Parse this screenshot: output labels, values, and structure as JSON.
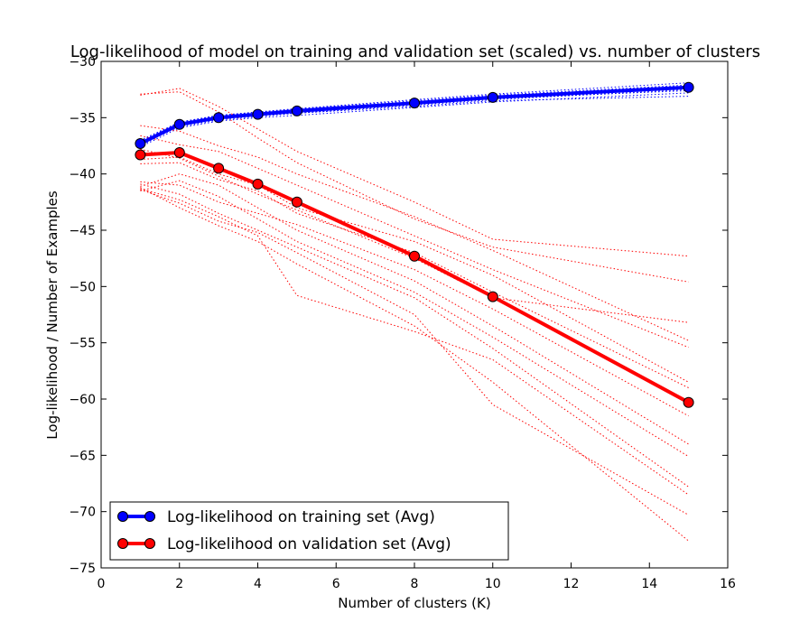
{
  "chart_data": {
    "type": "line",
    "title": "Log-likelihood of model on training and validation set (scaled) vs. number of clusters",
    "xlabel": "Number of clusters (K)",
    "ylabel": "Log-likelihood / Number of Examples",
    "xlim": [
      0,
      16
    ],
    "ylim": [
      -75,
      -30
    ],
    "xticks": [
      0,
      2,
      4,
      6,
      8,
      10,
      12,
      14,
      16
    ],
    "yticks": [
      -30,
      -35,
      -40,
      -45,
      -50,
      -55,
      -60,
      -65,
      -70,
      -75
    ],
    "x": [
      1,
      2,
      3,
      4,
      5,
      8,
      10,
      15
    ],
    "grid": false,
    "legend_position": "lower-left",
    "series": [
      {
        "name": "Log-likelihood on training set (Avg)",
        "color": "#0000ff",
        "values": [
          -37.3,
          -35.6,
          -35.0,
          -34.7,
          -34.4,
          -33.7,
          -33.2,
          -32.3
        ]
      },
      {
        "name": "Log-likelihood on validation set (Avg)",
        "color": "#ff0000",
        "values": [
          -38.3,
          -38.1,
          -39.5,
          -40.9,
          -42.5,
          -47.3,
          -50.9,
          -60.3
        ]
      }
    ],
    "runs": {
      "training": {
        "color": "#0000ff",
        "style": "dotted",
        "values": [
          [
            -37.4,
            -35.8,
            -35.2,
            -34.9,
            -34.6,
            -33.9,
            -33.4,
            -32.5
          ],
          [
            -37.0,
            -35.4,
            -34.8,
            -34.5,
            -34.2,
            -33.5,
            -33.0,
            -32.1
          ],
          [
            -37.6,
            -35.9,
            -35.3,
            -35.0,
            -34.8,
            -34.1,
            -33.6,
            -32.8
          ],
          [
            -37.2,
            -35.5,
            -34.9,
            -34.6,
            -34.3,
            -33.6,
            -33.1,
            -32.2
          ],
          [
            -37.5,
            -35.7,
            -35.1,
            -34.8,
            -34.6,
            -34.0,
            -33.5,
            -33.1
          ],
          [
            -37.1,
            -35.4,
            -34.8,
            -34.5,
            -34.2,
            -33.4,
            -32.9,
            -31.9
          ],
          [
            -37.3,
            -35.6,
            -35.0,
            -34.7,
            -34.5,
            -33.8,
            -33.3,
            -32.6
          ]
        ]
      },
      "validation": {
        "color": "#ff0000",
        "style": "dotted",
        "values": [
          [
            -33.0,
            -32.4,
            -34.0,
            -36.0,
            -38.0,
            -42.5,
            -45.8,
            -47.3
          ],
          [
            -32.9,
            -32.7,
            -34.5,
            -36.8,
            -39.0,
            -44.0,
            -46.5,
            -49.6
          ],
          [
            -35.7,
            -36.2,
            -37.5,
            -38.5,
            -40.0,
            -43.8,
            -46.8,
            -54.8
          ],
          [
            -36.6,
            -37.4,
            -38.0,
            -39.5,
            -41.0,
            -45.5,
            -48.5,
            -55.4
          ],
          [
            -38.7,
            -38.5,
            -40.0,
            -41.0,
            -43.0,
            -46.0,
            -49.0,
            -58.5
          ],
          [
            -39.1,
            -39.0,
            -40.5,
            -41.5,
            -43.5,
            -47.0,
            -50.5,
            -59.0
          ],
          [
            -40.7,
            -41.0,
            -42.5,
            -43.5,
            -44.5,
            -48.5,
            -52.0,
            -61.5
          ],
          [
            -41.1,
            -40.0,
            -41.0,
            -43.0,
            -45.0,
            -49.5,
            -53.5,
            -64.0
          ],
          [
            -41.5,
            -40.6,
            -42.0,
            -44.0,
            -46.0,
            -50.5,
            -54.5,
            -65.1
          ],
          [
            -40.9,
            -41.8,
            -43.5,
            -45.0,
            -46.5,
            -51.0,
            -55.5,
            -67.8
          ],
          [
            -41.3,
            -42.3,
            -43.8,
            -45.5,
            -50.8,
            -54.0,
            -56.5,
            -68.5
          ],
          [
            -41.4,
            -42.6,
            -44.2,
            -45.2,
            -47.0,
            -52.5,
            -60.5,
            -70.3
          ],
          [
            -41.2,
            -43.0,
            -44.6,
            -46.0,
            -48.0,
            -53.5,
            -58.5,
            -72.6
          ],
          [
            -37.8,
            -38.6,
            -40.2,
            -41.8,
            -43.2,
            -47.5,
            -51.0,
            -53.2
          ]
        ]
      }
    }
  }
}
